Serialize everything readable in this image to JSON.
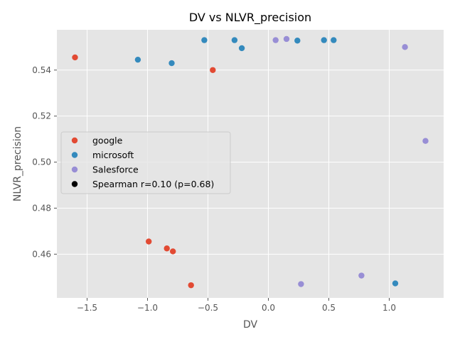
{
  "chart_data": {
    "type": "scatter",
    "title": "DV vs NLVR_precision",
    "xlabel": "DV",
    "ylabel": "NLVR_precision",
    "xlim": [
      -1.75,
      1.45
    ],
    "ylim": [
      0.441,
      0.5575
    ],
    "xticks": [
      -1.5,
      -1.0,
      -0.5,
      0.0,
      0.5,
      1.0
    ],
    "xtick_labels": [
      "−1.5",
      "−1.0",
      "−0.5",
      "0.0",
      "0.5",
      "1.0"
    ],
    "yticks": [
      0.46,
      0.48,
      0.5,
      0.52,
      0.54
    ],
    "ytick_labels": [
      "0.46",
      "0.48",
      "0.50",
      "0.52",
      "0.54"
    ],
    "grid": true,
    "legend_position": "center-left",
    "background_color": "#e5e5e5",
    "series": [
      {
        "name": "google",
        "color": "#e24a33",
        "points": [
          {
            "x": -1.6,
            "y": 0.5455
          },
          {
            "x": -0.46,
            "y": 0.54
          },
          {
            "x": -0.99,
            "y": 0.4655
          },
          {
            "x": -0.84,
            "y": 0.4625
          },
          {
            "x": -0.79,
            "y": 0.4612
          },
          {
            "x": -0.64,
            "y": 0.4465
          }
        ]
      },
      {
        "name": "microsoft",
        "color": "#348abd",
        "points": [
          {
            "x": -1.08,
            "y": 0.5445
          },
          {
            "x": -0.8,
            "y": 0.543
          },
          {
            "x": -0.53,
            "y": 0.553
          },
          {
            "x": -0.28,
            "y": 0.553
          },
          {
            "x": -0.22,
            "y": 0.5495
          },
          {
            "x": 0.24,
            "y": 0.5528
          },
          {
            "x": 0.46,
            "y": 0.553
          },
          {
            "x": 0.54,
            "y": 0.553
          },
          {
            "x": 1.05,
            "y": 0.4473
          }
        ]
      },
      {
        "name": "Salesforce",
        "color": "#988ed5",
        "points": [
          {
            "x": 0.06,
            "y": 0.553
          },
          {
            "x": 0.15,
            "y": 0.5535
          },
          {
            "x": 1.13,
            "y": 0.55
          },
          {
            "x": 1.3,
            "y": 0.5092
          },
          {
            "x": 0.27,
            "y": 0.447
          },
          {
            "x": 0.77,
            "y": 0.4507
          }
        ]
      }
    ],
    "legend_entries": [
      {
        "label": "google",
        "color": "#e24a33"
      },
      {
        "label": "microsoft",
        "color": "#348abd"
      },
      {
        "label": "Salesforce",
        "color": "#988ed5"
      },
      {
        "label": "Spearman r=0.10 (p=0.68)",
        "color": "#000000"
      }
    ]
  }
}
